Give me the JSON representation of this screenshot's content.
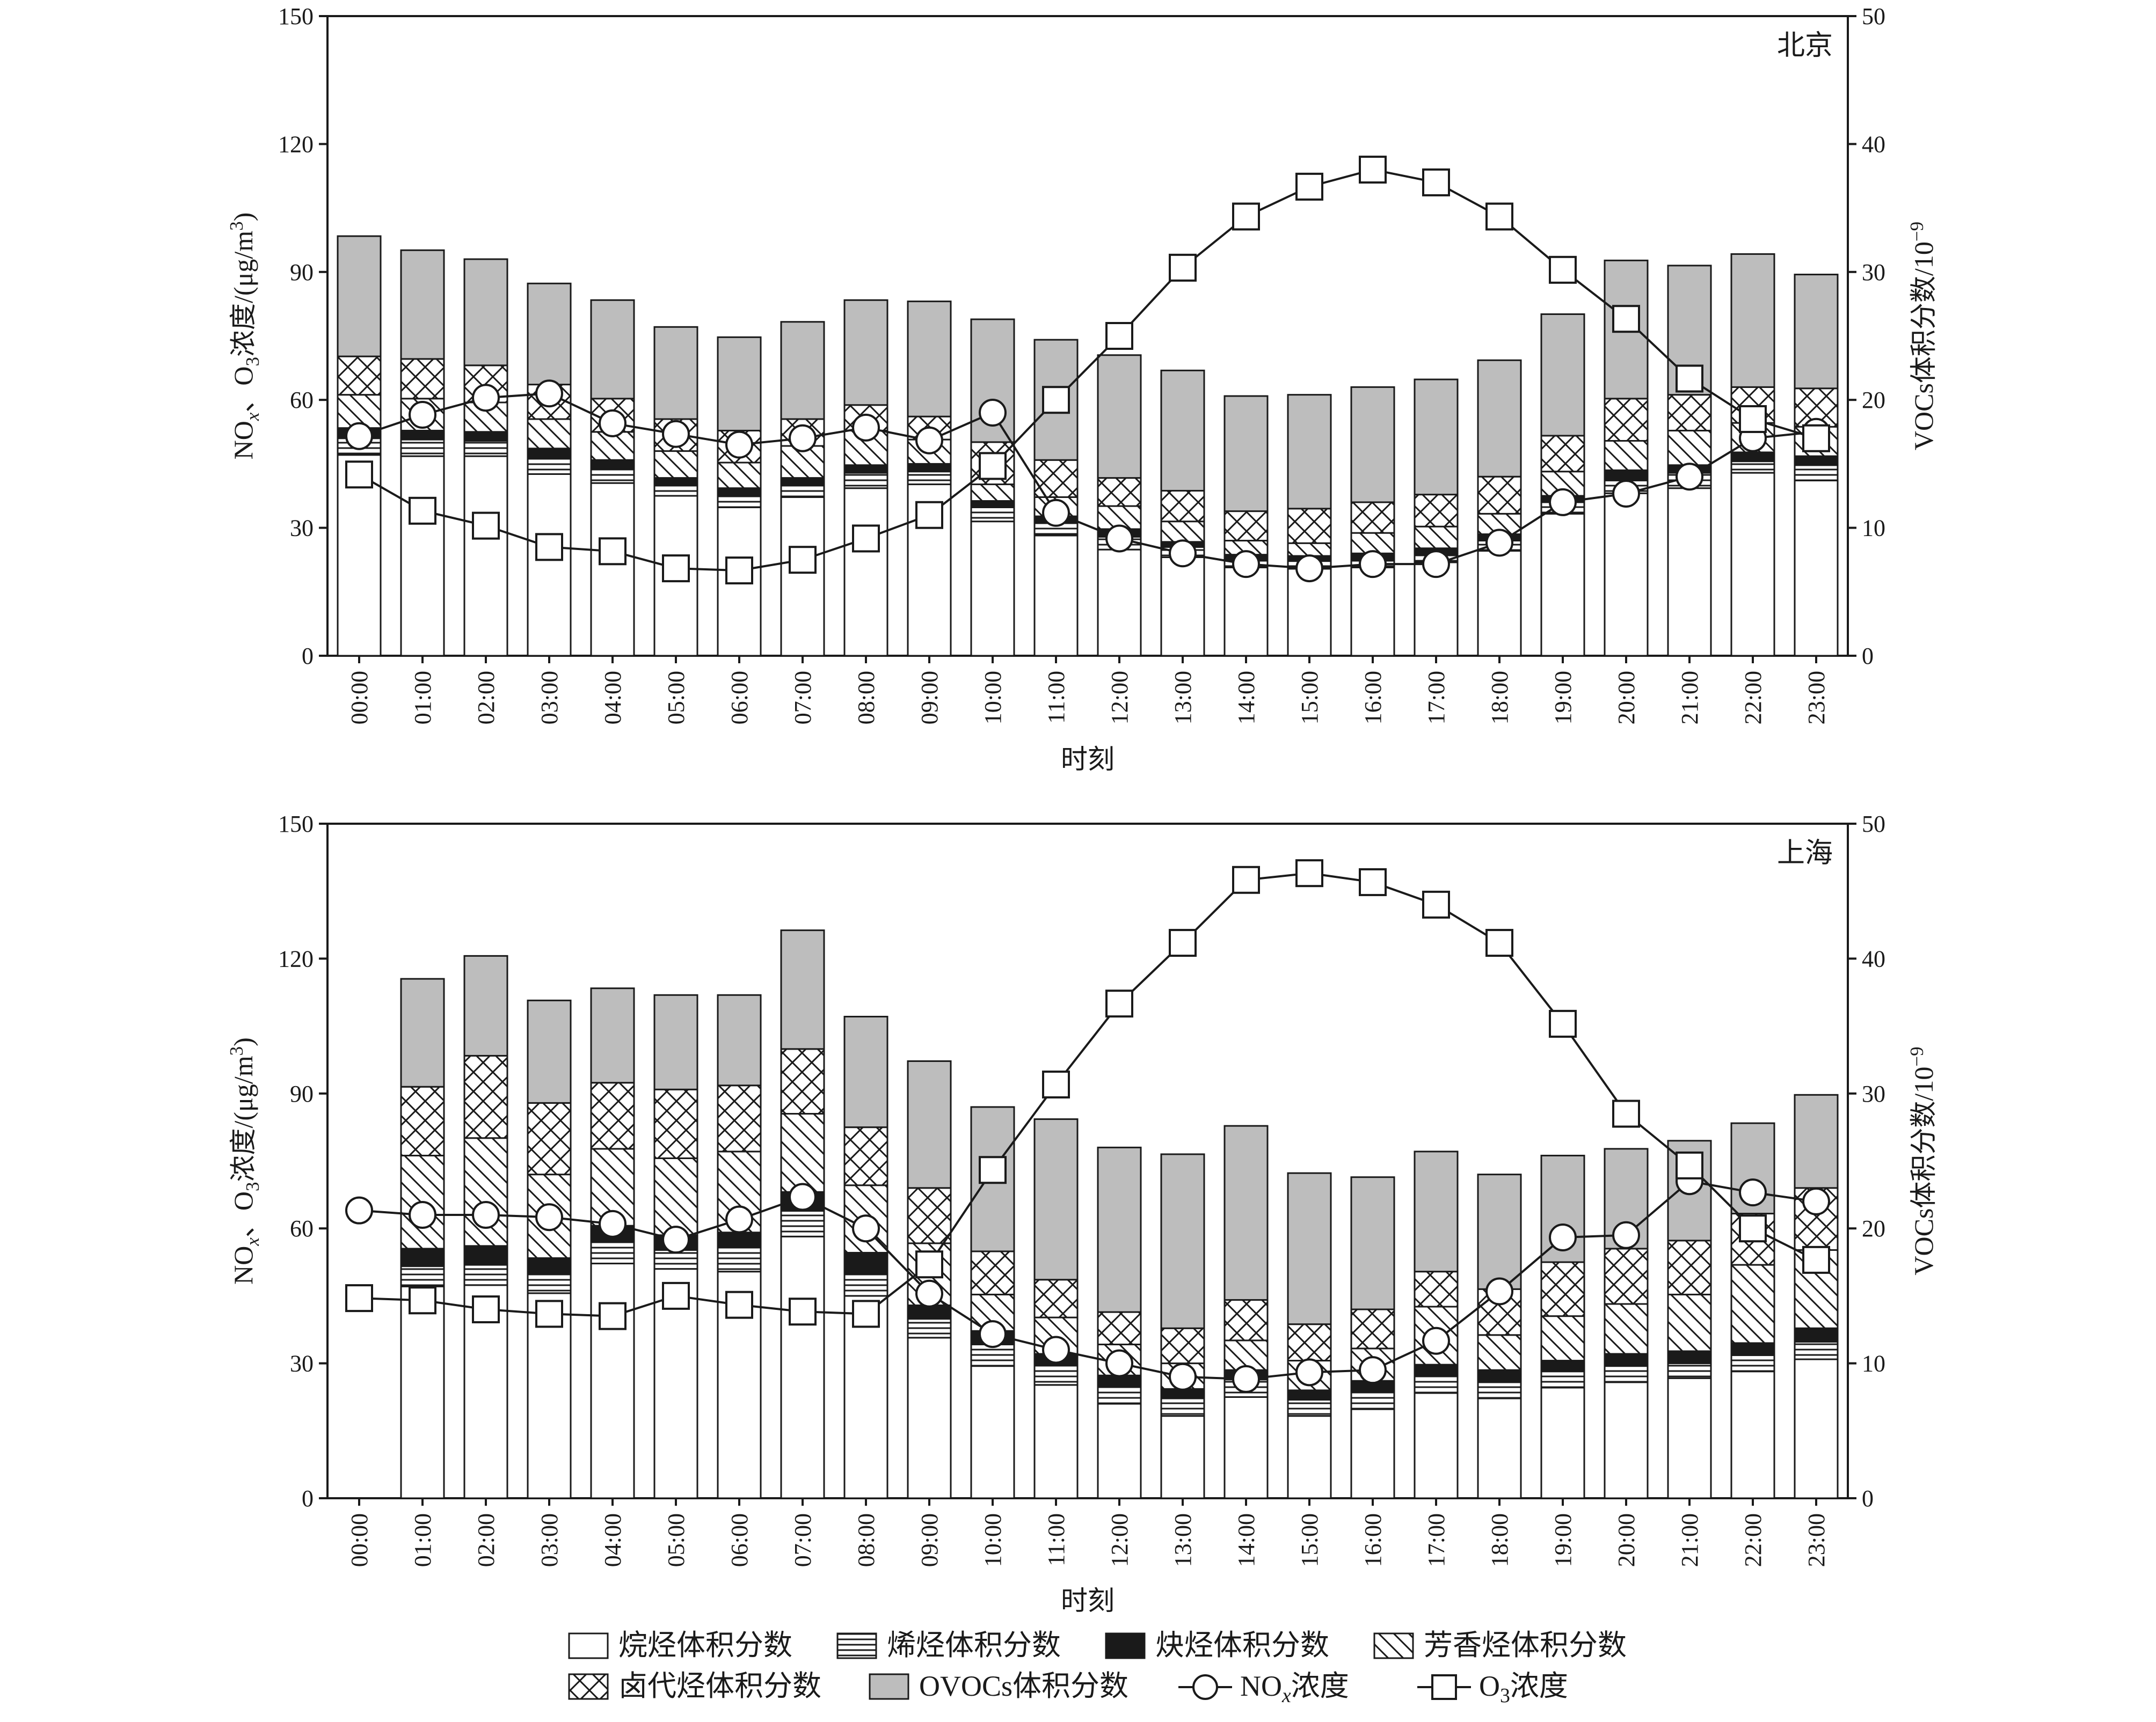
{
  "colors": {
    "ink": "#1a1a1a",
    "ovoc_fill": "#bdbdbd",
    "bar_fill": "#ffffff"
  },
  "legend": {
    "items": [
      {
        "key": "alkane",
        "label": "烷烃体积分数"
      },
      {
        "key": "alkene",
        "label": "烯烃体积分数"
      },
      {
        "key": "alkyne",
        "label": "炔烃体积分数"
      },
      {
        "key": "aromatic",
        "label": "芳香烃体积分数"
      },
      {
        "key": "halo",
        "label": "卤代烃体积分数"
      },
      {
        "key": "ovoc",
        "label": "OVOCs体积分数"
      },
      {
        "key": "nox",
        "label": "NOx浓度"
      },
      {
        "key": "o3",
        "label": "O3浓度"
      }
    ]
  },
  "chart_data": [
    {
      "type": "bar",
      "panel_label": "北京",
      "xlabel": "时刻",
      "ylabel_left": "NOx、O3浓度/(μg/m3)",
      "ylabel_right": "VOCs体积分数/10−9",
      "ylim_left": [
        0,
        150
      ],
      "ylim_right": [
        0,
        50
      ],
      "yticks_left": [
        0,
        30,
        60,
        90,
        120,
        150
      ],
      "yticks_right": [
        0,
        10,
        20,
        30,
        40,
        50
      ],
      "grid": false,
      "legend_position": "bottom",
      "categories": [
        "00:00",
        "01:00",
        "02:00",
        "03:00",
        "04:00",
        "05:00",
        "06:00",
        "07:00",
        "08:00",
        "09:00",
        "10:00",
        "11:00",
        "12:00",
        "13:00",
        "14:00",
        "15:00",
        "16:00",
        "17:00",
        "18:00",
        "19:00",
        "20:00",
        "21:00",
        "22:00",
        "23:00"
      ],
      "stacked_series": [
        {
          "key": "alkane",
          "axis": "right",
          "values": [
            15.7,
            15.6,
            15.6,
            14.2,
            13.5,
            12.5,
            11.6,
            12.4,
            13.1,
            13.4,
            10.5,
            9.4,
            8.3,
            7.7,
            6.9,
            6.8,
            6.9,
            7.3,
            8.2,
            11.1,
            12.7,
            13.1,
            14.3,
            13.7
          ]
        },
        {
          "key": "alkene",
          "axis": "right",
          "values": [
            1.3,
            1.3,
            1.2,
            1.3,
            1.1,
            0.8,
            0.9,
            0.9,
            1.2,
            1.0,
            1.1,
            1.0,
            1.0,
            0.8,
            0.6,
            0.6,
            0.6,
            0.6,
            0.8,
            0.9,
            1.0,
            1.2,
            0.9,
            1.2
          ]
        },
        {
          "key": "alkyne",
          "axis": "right",
          "values": [
            0.8,
            0.7,
            0.7,
            0.7,
            0.7,
            0.6,
            0.6,
            0.6,
            0.6,
            0.6,
            0.5,
            0.5,
            0.6,
            0.4,
            0.4,
            0.4,
            0.5,
            0.5,
            0.5,
            0.5,
            0.8,
            0.6,
            0.7,
            0.7
          ]
        },
        {
          "key": "aromatic",
          "axis": "right",
          "values": [
            2.6,
            2.5,
            2.3,
            2.3,
            2.2,
            2.1,
            2.0,
            2.5,
            2.7,
            1.9,
            1.3,
            1.5,
            1.8,
            1.6,
            1.1,
            1.0,
            1.6,
            1.7,
            1.6,
            1.9,
            2.3,
            2.7,
            2.3,
            2.3
          ]
        },
        {
          "key": "halo",
          "axis": "right",
          "values": [
            3.0,
            3.1,
            2.9,
            2.7,
            2.6,
            2.5,
            2.5,
            2.1,
            2.0,
            1.8,
            3.3,
            2.9,
            2.2,
            2.4,
            2.3,
            2.7,
            2.4,
            2.5,
            2.9,
            2.8,
            3.3,
            2.8,
            2.8,
            3.0
          ]
        },
        {
          "key": "ovoc",
          "axis": "right",
          "values": [
            9.4,
            8.5,
            8.3,
            7.9,
            7.7,
            7.2,
            7.3,
            7.6,
            8.2,
            9.0,
            9.6,
            9.4,
            9.6,
            9.4,
            9.0,
            8.9,
            9.0,
            9.0,
            9.1,
            9.5,
            10.8,
            10.1,
            10.4,
            8.9
          ]
        }
      ],
      "line_series": [
        {
          "key": "nox",
          "axis": "left",
          "marker": "circle",
          "values": [
            51.5,
            56.5,
            60.5,
            61.5,
            54.5,
            52.0,
            49.5,
            51.0,
            53.5,
            50.5,
            57.0,
            33.5,
            27.5,
            24.0,
            21.5,
            20.5,
            21.5,
            21.5,
            26.5,
            36.0,
            38.0,
            42.0,
            51.0,
            52.5
          ]
        },
        {
          "key": "o3",
          "axis": "left",
          "marker": "square",
          "values": [
            42.5,
            34.0,
            30.5,
            25.5,
            24.5,
            20.5,
            20.0,
            22.5,
            27.5,
            33.0,
            44.5,
            60.0,
            75.0,
            91.0,
            103.0,
            110.0,
            114.0,
            111.0,
            103.0,
            90.5,
            79.0,
            65.0,
            55.5,
            51.0
          ]
        }
      ]
    },
    {
      "type": "bar",
      "panel_label": "上海",
      "xlabel": "时刻",
      "ylabel_left": "NOx、O3浓度/(μg/m3)",
      "ylabel_right": "VOCs体积分数/10−9",
      "ylim_left": [
        0,
        150
      ],
      "ylim_right": [
        0,
        50
      ],
      "yticks_left": [
        0,
        30,
        60,
        90,
        120,
        150
      ],
      "yticks_right": [
        0,
        10,
        20,
        30,
        40,
        50
      ],
      "grid": false,
      "legend_position": "bottom",
      "categories": [
        "00:00",
        "01:00",
        "02:00",
        "03:00",
        "04:00",
        "05:00",
        "06:00",
        "07:00",
        "08:00",
        "09:00",
        "10:00",
        "11:00",
        "12:00",
        "13:00",
        "14:00",
        "15:00",
        "16:00",
        "17:00",
        "18:00",
        "19:00",
        "20:00",
        "21:00",
        "22:00",
        "23:00"
      ],
      "stacked_series": [
        {
          "key": "alkane",
          "axis": "right",
          "values": [
            null,
            15.7,
            15.8,
            15.2,
            17.4,
            17.0,
            16.8,
            19.4,
            15.0,
            11.9,
            9.8,
            8.4,
            7.0,
            6.1,
            7.5,
            6.1,
            6.6,
            7.8,
            7.4,
            8.2,
            8.6,
            8.9,
            9.4,
            10.3
          ]
        },
        {
          "key": "alkene",
          "axis": "right",
          "values": [
            null,
            1.5,
            1.5,
            1.4,
            1.6,
            1.4,
            1.8,
            1.9,
            1.7,
            1.4,
            1.6,
            1.5,
            1.3,
            1.3,
            1.3,
            1.2,
            1.3,
            1.3,
            1.2,
            1.2,
            1.2,
            1.1,
            1.2,
            1.3
          ]
        },
        {
          "key": "alkyne",
          "axis": "right",
          "values": [
            null,
            1.3,
            1.4,
            1.2,
            1.2,
            1.1,
            1.1,
            1.4,
            1.5,
            1.0,
            1.0,
            0.8,
            0.8,
            0.7,
            0.7,
            0.7,
            0.8,
            0.8,
            0.9,
            0.8,
            0.9,
            0.9,
            0.9,
            1.0
          ]
        },
        {
          "key": "aromatic",
          "axis": "right",
          "values": [
            null,
            6.9,
            8.0,
            6.2,
            5.7,
            5.7,
            6.0,
            5.8,
            5.0,
            4.6,
            2.7,
            2.7,
            2.3,
            1.9,
            2.2,
            2.2,
            2.4,
            4.3,
            2.6,
            3.3,
            3.7,
            4.2,
            5.8,
            5.8
          ]
        },
        {
          "key": "halo",
          "axis": "right",
          "values": [
            null,
            5.1,
            6.1,
            5.3,
            4.9,
            5.1,
            4.9,
            4.8,
            4.3,
            4.1,
            3.2,
            2.8,
            2.4,
            2.6,
            3.0,
            2.7,
            2.9,
            2.6,
            3.4,
            4.0,
            4.1,
            4.0,
            3.8,
            4.6
          ]
        },
        {
          "key": "ovoc",
          "axis": "right",
          "values": [
            null,
            8.0,
            7.4,
            7.6,
            7.0,
            7.0,
            6.7,
            8.8,
            8.2,
            9.4,
            10.7,
            11.9,
            12.2,
            12.9,
            12.9,
            11.2,
            9.8,
            8.9,
            8.5,
            7.9,
            7.4,
            7.4,
            6.7,
            6.9
          ]
        }
      ],
      "line_series": [
        {
          "key": "nox",
          "axis": "left",
          "marker": "circle",
          "values": [
            64.0,
            63.0,
            63.0,
            62.5,
            61.0,
            57.5,
            62.0,
            67.0,
            60.0,
            45.5,
            36.5,
            33.0,
            30.0,
            27.0,
            26.5,
            28.0,
            28.5,
            35.0,
            46.0,
            58.0,
            58.5,
            70.5,
            68.0,
            66.0
          ]
        },
        {
          "key": "o3",
          "axis": "left",
          "marker": "square",
          "values": [
            44.5,
            44.0,
            42.0,
            41.0,
            40.5,
            45.0,
            43.0,
            41.5,
            41.0,
            52.0,
            73.0,
            92.0,
            110.0,
            123.5,
            137.5,
            139.0,
            137.0,
            132.0,
            123.5,
            105.5,
            85.5,
            74.0,
            60.0,
            53.0
          ]
        }
      ]
    }
  ]
}
